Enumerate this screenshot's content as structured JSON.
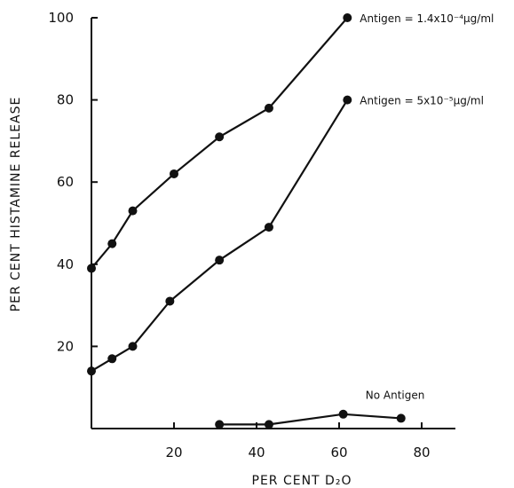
{
  "chart_data": {
    "type": "line",
    "title": "",
    "xlabel": "PER CENT D₂O",
    "ylabel": "PER CENT HISTAMINE RELEASE",
    "xlim": [
      0,
      90
    ],
    "ylim": [
      0,
      100
    ],
    "xticks": [
      20,
      40,
      60,
      80
    ],
    "yticks": [
      20,
      40,
      60,
      80,
      100
    ],
    "grid": false,
    "series": [
      {
        "name": "Antigen = 1.4x10⁻⁴µg/ml",
        "x": [
          0,
          5,
          10,
          20,
          31,
          43,
          62
        ],
        "y": [
          39,
          45,
          53,
          62,
          71,
          78,
          100
        ]
      },
      {
        "name": "Antigen = 5x10⁻⁵µg/ml",
        "x": [
          0,
          5,
          10,
          19,
          31,
          43,
          62
        ],
        "y": [
          14,
          17,
          20,
          31,
          41,
          49,
          80
        ]
      },
      {
        "name": "No Antigen",
        "x": [
          31,
          43,
          61,
          75
        ],
        "y": [
          1,
          1,
          3.5,
          2.5
        ]
      }
    ]
  }
}
